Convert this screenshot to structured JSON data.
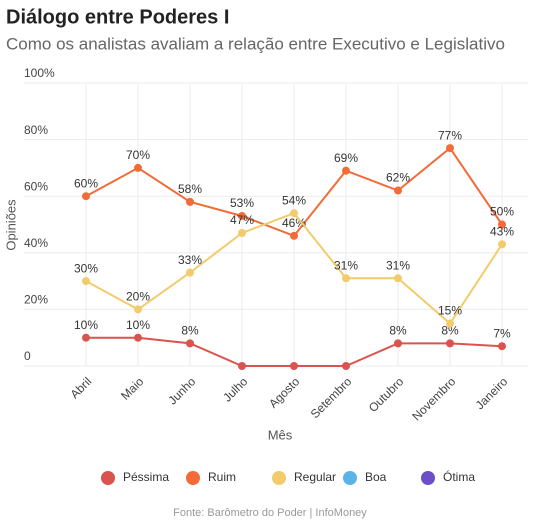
{
  "chart_data": {
    "type": "line",
    "title": "Diálogo entre Poderes I",
    "subtitle": "Como os analistas avaliam a relação entre Executivo e Legislativo",
    "y_label": "Opiniões",
    "x_label": "Mês",
    "source": "Fonte: Barômetro do Poder | InfoMoney",
    "categories": [
      "Abril",
      "Maio",
      "Junho",
      "Julho",
      "Agosto",
      "Setembro",
      "Outubro",
      "Novembro",
      "Janeiro"
    ],
    "series": [
      {
        "name": "Péssima",
        "color": "#d9534f",
        "values": [
          10,
          10,
          8,
          0,
          0,
          0,
          8,
          8,
          7
        ],
        "value_labels": [
          "10%",
          "10%",
          "8%",
          null,
          null,
          null,
          "8%",
          "8%",
          "7%"
        ]
      },
      {
        "name": "Ruim",
        "color": "#f26b38",
        "values": [
          60,
          70,
          58,
          53,
          46,
          69,
          62,
          77,
          50
        ],
        "value_labels": [
          "60%",
          "70%",
          "58%",
          "53%",
          "46%",
          "69%",
          "62%",
          "77%",
          "50%"
        ]
      },
      {
        "name": "Regular",
        "color": "#f2cc6b",
        "values": [
          30,
          20,
          33,
          47,
          54,
          31,
          31,
          15,
          43
        ],
        "value_labels": [
          "30%",
          "20%",
          "33%",
          "47%",
          "54%",
          "31%",
          "31%",
          "15%",
          "43%"
        ]
      },
      {
        "name": "Boa",
        "color": "#5ab4e5",
        "values": [
          null,
          null,
          null,
          null,
          null,
          null,
          null,
          null,
          null
        ]
      },
      {
        "name": "Ótima",
        "color": "#6a4fc9",
        "values": [
          null,
          null,
          null,
          null,
          null,
          null,
          null,
          null,
          null
        ]
      }
    ],
    "ylim": [
      0,
      100
    ],
    "yticks": [
      0,
      {
        "value": 20,
        "label": "20%"
      },
      {
        "value": 40,
        "label": "40%"
      },
      {
        "value": 60,
        "label": "60%"
      },
      {
        "value": 80,
        "label": "80%"
      },
      {
        "value": 100,
        "label": "100%"
      }
    ],
    "grid": true,
    "legend": "bottom"
  }
}
